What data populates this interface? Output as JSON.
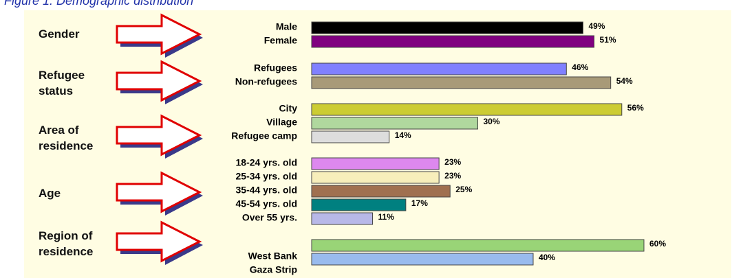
{
  "chart_data": {
    "type": "bar",
    "title": "Figure 1: Demographic distribution",
    "groups": [
      {
        "label": "Gender",
        "categories": [
          "Male",
          "Female"
        ],
        "values": [
          49,
          51
        ],
        "value_labels": [
          "49%",
          "51%"
        ],
        "colors": [
          "#000000",
          "#800080"
        ]
      },
      {
        "label": "Refugee status",
        "categories": [
          "Refugees",
          "Non-refugees"
        ],
        "values": [
          46,
          54
        ],
        "value_labels": [
          "46%",
          "54%"
        ],
        "colors": [
          "#8080ff",
          "#a89a78"
        ]
      },
      {
        "label": "Area of residence",
        "categories": [
          "City",
          "Village",
          "Refugee camp"
        ],
        "values": [
          56,
          30,
          14
        ],
        "value_labels": [
          "56%",
          "30%",
          "14%"
        ],
        "colors": [
          "#cccc33",
          "#b0d89e",
          "#dddddd"
        ]
      },
      {
        "label": "Age",
        "categories": [
          "18-24 yrs. old",
          "25-34 yrs. old",
          "35-44 yrs. old",
          "45-54 yrs. old",
          "Over 55 yrs."
        ],
        "values": [
          23,
          23,
          25,
          17,
          11
        ],
        "value_labels": [
          "23%",
          "23%",
          "25%",
          "17%",
          "11%"
        ],
        "colors": [
          "#dd88ee",
          "#f7eebb",
          "#a07050",
          "#008080",
          "#b8b8e8"
        ]
      },
      {
        "label": "Region of residence",
        "categories": [
          "West Bank",
          "Gaza Strip"
        ],
        "values": [
          60,
          40
        ],
        "value_labels": [
          "60%",
          "40%"
        ],
        "colors": [
          "#99d477",
          "#99bbee"
        ]
      }
    ]
  }
}
